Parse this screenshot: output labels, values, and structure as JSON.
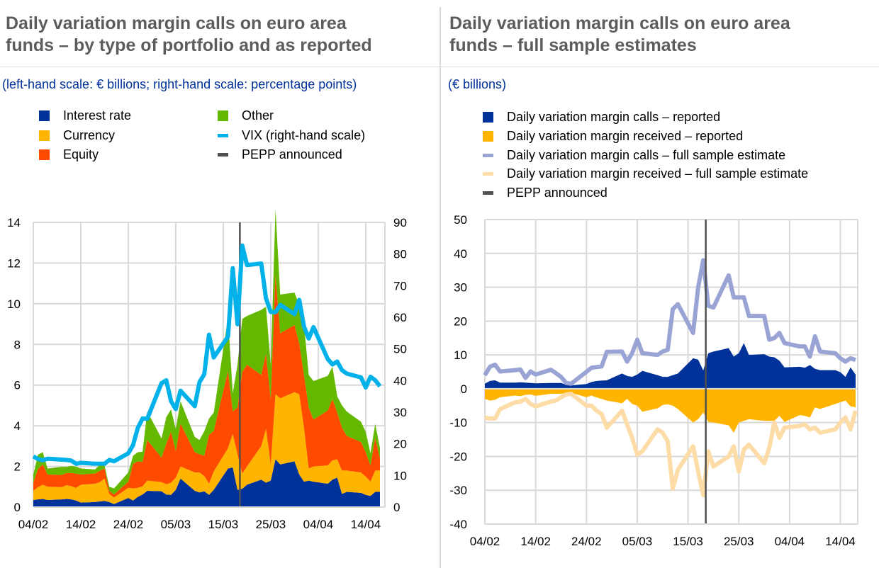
{
  "left": {
    "title_line1": "Daily variation margin calls on euro area",
    "title_line2": "funds – by type of portfolio and as reported",
    "subtitle": "(left-hand scale: € billions; right-hand scale: percentage points)",
    "legend": [
      {
        "label": "Interest rate",
        "kind": "square",
        "color": "#003299"
      },
      {
        "label": "Currency",
        "kind": "square",
        "color": "#ffb400"
      },
      {
        "label": "Equity",
        "kind": "square",
        "color": "#ff4b00"
      },
      {
        "label": "Other",
        "kind": "square",
        "color": "#65b800"
      },
      {
        "label": "VIX (right-hand scale)",
        "kind": "line",
        "color": "#00b1ea"
      },
      {
        "label": "PEPP announced",
        "kind": "line",
        "color": "#505050"
      }
    ]
  },
  "right": {
    "title_line1": "Daily variation margin calls on euro area",
    "title_line2": "funds – full sample estimates",
    "subtitle": "(€ billions)",
    "legend": [
      {
        "label": "Daily variation margin calls – reported",
        "kind": "square",
        "color": "#003299"
      },
      {
        "label": "Daily variation margin received – reported",
        "kind": "square",
        "color": "#ffb400"
      },
      {
        "label": "Daily variation margin calls – full sample estimate",
        "kind": "line",
        "color": "#9aa4d4"
      },
      {
        "label": "Daily variation margin received – full sample estimate",
        "kind": "line",
        "color": "#fddca8"
      },
      {
        "label": "PEPP announced",
        "kind": "line",
        "color": "#505050"
      }
    ]
  },
  "chart_data": [
    {
      "type": "area",
      "stacked": true,
      "title": "Daily variation margin calls on euro area funds – by type of portfolio and as reported",
      "ylabel": "€ billions",
      "y2label": "percentage points",
      "ylim": [
        0,
        14
      ],
      "yticks": [
        0,
        2,
        4,
        6,
        8,
        10,
        12,
        14
      ],
      "y2lim": [
        0,
        90
      ],
      "y2ticks": [
        0,
        10,
        20,
        30,
        40,
        50,
        60,
        70,
        80,
        90
      ],
      "xticks": [
        "04/02",
        "14/02",
        "24/02",
        "05/03",
        "15/03",
        "25/03",
        "04/04",
        "14/04"
      ],
      "xtick_days": [
        0,
        10,
        20,
        30,
        40,
        50,
        60,
        70
      ],
      "x_range_days": [
        0,
        73
      ],
      "grid": true,
      "legend_position": "top",
      "vline": {
        "label": "PEPP announced",
        "day": 43.5
      },
      "x_days": [
        0,
        1,
        2,
        3,
        6,
        7,
        8,
        9,
        10,
        13,
        14,
        15,
        16,
        17,
        20,
        21,
        22,
        23,
        24,
        27,
        28,
        29,
        30,
        31,
        34,
        35,
        36,
        37,
        38,
        41,
        42,
        43,
        44,
        45,
        48,
        49,
        50,
        51,
        52,
        55,
        56,
        57,
        58,
        59,
        62,
        63,
        64,
        65,
        66,
        69,
        70,
        71,
        72,
        73
      ],
      "series": [
        {
          "name": "Interest rate",
          "color": "#003299",
          "values": [
            0.35,
            0.38,
            0.4,
            0.35,
            0.38,
            0.4,
            0.38,
            0.32,
            0.22,
            0.25,
            0.28,
            0.3,
            0.25,
            0.15,
            0.45,
            0.32,
            0.5,
            0.62,
            0.8,
            0.78,
            0.62,
            0.6,
            0.85,
            1.4,
            0.8,
            0.72,
            0.78,
            0.6,
            0.85,
            1.9,
            1.95,
            0.85,
            0.9,
            1.1,
            1.35,
            1.2,
            1.3,
            2.35,
            2.1,
            2.25,
            1.6,
            1.25,
            1.3,
            1.25,
            1.15,
            1.35,
            1.45,
            0.65,
            0.75,
            0.7,
            0.6,
            0.55,
            0.75,
            0.75
          ]
        },
        {
          "name": "Currency",
          "color": "#ffb400",
          "values": [
            0.45,
            0.6,
            0.7,
            0.65,
            0.6,
            0.68,
            0.65,
            0.62,
            0.88,
            0.9,
            0.95,
            1.1,
            0.4,
            0.32,
            0.5,
            0.6,
            0.45,
            0.4,
            0.5,
            0.45,
            0.5,
            0.6,
            0.6,
            0.6,
            0.9,
            0.98,
            0.75,
            0.55,
            0.9,
            1.0,
            1.65,
            1.75,
            0.75,
            0.9,
            1.65,
            2.65,
            0.8,
            3.2,
            3.25,
            3.4,
            3.95,
            2.65,
            0.6,
            0.75,
            0.9,
            0.95,
            0.9,
            1.15,
            1.05,
            1.0,
            0.9,
            0.7,
            1.05,
            1.05
          ]
        },
        {
          "name": "Equity",
          "color": "#ff4b00",
          "values": [
            0.4,
            0.9,
            1.0,
            0.6,
            0.6,
            0.6,
            0.65,
            0.7,
            0.5,
            0.5,
            0.55,
            0.5,
            0.15,
            0.15,
            0.3,
            1.2,
            1.3,
            1.2,
            2.0,
            1.2,
            2.0,
            2.5,
            1.3,
            2.1,
            1.0,
            0.9,
            1.0,
            2.4,
            2.0,
            3.8,
            1.1,
            2.3,
            5.0,
            5.0,
            3.5,
            3.7,
            3.2,
            5.9,
            3.2,
            3.3,
            2.5,
            2.6,
            3.0,
            2.3,
            2.7,
            3.0,
            2.3,
            2.1,
            1.7,
            1.5,
            1.2,
            0.8,
            1.6,
            0.6
          ]
        },
        {
          "name": "Other",
          "color": "#65b800",
          "values": [
            0.4,
            0.7,
            0.6,
            0.3,
            0.4,
            0.3,
            0.35,
            0.35,
            0.3,
            0.2,
            0.3,
            0.15,
            0.2,
            0.3,
            0.45,
            0.4,
            0.45,
            0.5,
            1.4,
            0.95,
            1.3,
            1.1,
            1.1,
            1.1,
            0.75,
            0.7,
            1.2,
            0.8,
            0.9,
            2.6,
            0.9,
            2.1,
            2.6,
            2.4,
            3.2,
            2.3,
            1.7,
            3.2,
            1.9,
            1.6,
            1.9,
            2.5,
            1.6,
            1.9,
            1.7,
            1.6,
            0.8,
            1.1,
            1.2,
            1.0,
            1.0,
            0.6,
            0.7,
            0.5
          ]
        },
        {
          "name": "VIX (right-hand scale)",
          "color": "#00b1ea",
          "axis": "right",
          "values": [
            16,
            15.2,
            14.8,
            15.3,
            15.0,
            14.9,
            14.7,
            13.7,
            14.0,
            13.7,
            13.7,
            13.7,
            14.9,
            14.5,
            17,
            19.6,
            25.0,
            28.0,
            27.9,
            39.2,
            40.1,
            33.5,
            31.0,
            36.8,
            31.9,
            39.5,
            42.0,
            54.5,
            47.3,
            53.9,
            75.5,
            57.8,
            82.7,
            76.5,
            77.0,
            66.0,
            61.7,
            61.6,
            63.9,
            61.0,
            65.5,
            57.1,
            53.3,
            56.9,
            46.8,
            45.1,
            46.0,
            43.3,
            42.2,
            41.0,
            37.8,
            41.2,
            40.1,
            38.2
          ]
        }
      ]
    },
    {
      "type": "area",
      "title": "Daily variation margin calls on euro area funds – full sample estimates",
      "ylabel": "€ billions",
      "ylim": [
        -40,
        50
      ],
      "yticks": [
        -40,
        -30,
        -20,
        -10,
        0,
        10,
        20,
        30,
        40,
        50
      ],
      "xticks": [
        "04/02",
        "14/02",
        "24/02",
        "05/03",
        "15/03",
        "25/03",
        "04/04",
        "14/04"
      ],
      "xtick_days": [
        0,
        10,
        20,
        30,
        40,
        50,
        60,
        70
      ],
      "x_range_days": [
        0,
        73
      ],
      "grid": true,
      "legend_position": "top",
      "vline": {
        "label": "PEPP announced",
        "day": 43.5
      },
      "x_days": [
        0,
        1,
        2,
        3,
        6,
        7,
        8,
        9,
        10,
        13,
        14,
        15,
        16,
        17,
        20,
        21,
        22,
        23,
        24,
        27,
        28,
        29,
        30,
        31,
        34,
        35,
        36,
        37,
        38,
        41,
        42,
        43,
        44,
        45,
        48,
        49,
        50,
        51,
        52,
        55,
        56,
        57,
        58,
        59,
        62,
        63,
        64,
        65,
        66,
        69,
        70,
        71,
        72,
        73
      ],
      "series": [
        {
          "name": "Daily variation margin calls – reported",
          "kind": "area",
          "color": "#003299",
          "values": [
            1.5,
            2.3,
            2.5,
            1.8,
            1.8,
            1.9,
            1.8,
            1.7,
            1.6,
            1.7,
            1.7,
            1.7,
            1.2,
            1.0,
            1.4,
            2.0,
            2.3,
            2.4,
            2.5,
            4.5,
            3.8,
            3.5,
            4.2,
            5.3,
            4.0,
            3.5,
            3.5,
            4.0,
            4.5,
            9.0,
            8.6,
            5.4,
            10.5,
            11.0,
            12.0,
            9.5,
            10.5,
            13.5,
            10.0,
            10.2,
            9.5,
            9.3,
            8.3,
            6.3,
            6.5,
            6.2,
            7.0,
            5.9,
            5.5,
            5.5,
            4.9,
            3.5,
            6.3,
            4.2
          ]
        },
        {
          "name": "Daily variation margin received – reported",
          "kind": "area",
          "color": "#ffb400",
          "values": [
            -3.0,
            -3.5,
            -3.3,
            -2.5,
            -2.0,
            -2.2,
            -1.8,
            -1.7,
            -2.1,
            -1.5,
            -1.5,
            -1.5,
            -1.3,
            -1.2,
            -2.5,
            -2.0,
            -2.6,
            -3.0,
            -3.5,
            -4.3,
            -3.0,
            -4.5,
            -5.0,
            -6.8,
            -5.8,
            -4.8,
            -4.6,
            -5.0,
            -6.0,
            -10.0,
            -9.0,
            -7.0,
            -9.8,
            -10.0,
            -10.8,
            -13.0,
            -10.0,
            -9.5,
            -9.0,
            -9.5,
            -9.5,
            -9.5,
            -8.0,
            -9.8,
            -7.8,
            -8.0,
            -8.5,
            -5.5,
            -6.0,
            -4.5,
            -4.0,
            -3.5,
            -5.2,
            -5.5
          ]
        },
        {
          "name": "Daily variation margin calls – full sample estimate",
          "kind": "line",
          "color": "#9aa4d4",
          "values": [
            4.0,
            6.5,
            7.1,
            5.1,
            5.5,
            5.7,
            3.2,
            5.1,
            4.2,
            5.6,
            4.6,
            3.5,
            1.7,
            1.5,
            5.0,
            6.2,
            6.4,
            6.6,
            10.9,
            11.0,
            8.0,
            10.5,
            14.5,
            10.5,
            10.0,
            11.0,
            11.5,
            23.5,
            25.0,
            16.5,
            30.0,
            38.0,
            24.5,
            24.0,
            33.5,
            27.0,
            27.0,
            27.0,
            21.5,
            21.5,
            14.5,
            15.0,
            16.5,
            13.5,
            12.5,
            12.5,
            9.5,
            15.5,
            11.0,
            10.5,
            9.0,
            8.0,
            9.0,
            8.5
          ]
        },
        {
          "name": "Daily variation margin received – full sample estimate",
          "kind": "line",
          "color": "#fddca8",
          "values": [
            -8.5,
            -8.8,
            -8.8,
            -6.0,
            -4.0,
            -3.8,
            -3.0,
            -4.5,
            -5.2,
            -3.8,
            -3.5,
            -2.5,
            -1.7,
            -1.5,
            -5.0,
            -5.0,
            -6.5,
            -7.5,
            -11.5,
            -6.5,
            -10.5,
            -14.5,
            -19.5,
            -18.5,
            -12.0,
            -13.0,
            -15.5,
            -29.5,
            -24.0,
            -17.0,
            -24.5,
            -31.5,
            -18.5,
            -23.0,
            -20.0,
            -17.0,
            -24.5,
            -18.0,
            -16.5,
            -22.0,
            -17.5,
            -10.0,
            -14.5,
            -11.5,
            -11.0,
            -10.5,
            -12.0,
            -11.5,
            -13.0,
            -12.0,
            -10.0,
            -8.5,
            -12.0,
            -6.5
          ]
        }
      ]
    }
  ]
}
